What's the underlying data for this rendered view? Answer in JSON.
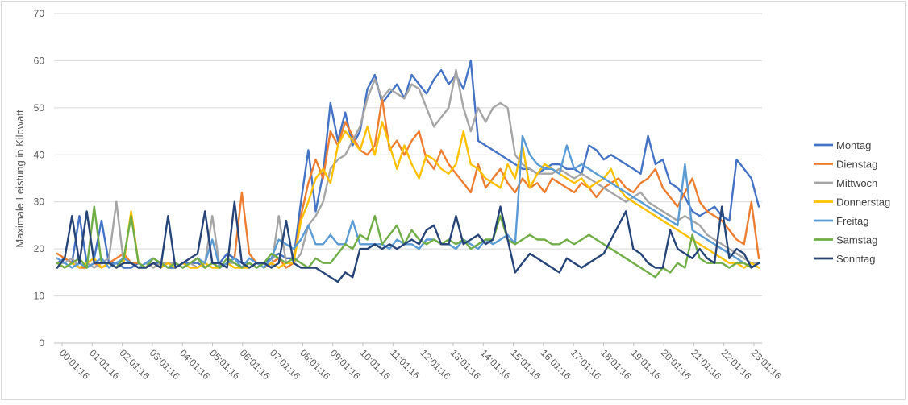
{
  "chart_data": {
    "type": "line",
    "title": "",
    "xlabel": "",
    "ylabel": "Maximale Leistung in Kilowatt",
    "ylim": [
      0,
      70
    ],
    "yticks": [
      0,
      10,
      20,
      30,
      40,
      50,
      60,
      70
    ],
    "grid": true,
    "legend_position": "right",
    "points_per_series": 96,
    "x_tick_labels": [
      "00:01:16",
      "01:01:16",
      "02:01:16",
      "03:01:16",
      "04:01:16",
      "05:01:16",
      "06:01:16",
      "07:01:16",
      "08:01:16",
      "09:01:16",
      "10:01:16",
      "11:01:16",
      "12:01:16",
      "13:01:16",
      "14:01:16",
      "15:01:16",
      "16:01:16",
      "17:01:16",
      "18:01:16",
      "19:01:16",
      "20:01:16",
      "21:01:16",
      "22:01:16",
      "23:01:16"
    ],
    "series": [
      {
        "name": "Montag",
        "color": "#4472c4",
        "values": [
          17,
          18,
          17,
          27,
          17,
          18,
          26,
          17,
          17,
          16,
          16,
          17,
          16,
          17,
          17,
          16,
          16,
          17,
          17,
          17,
          16,
          17,
          17,
          19,
          18,
          17,
          17,
          16,
          17,
          18,
          19,
          18,
          18,
          30,
          41,
          28,
          36,
          51,
          43,
          49,
          42,
          45,
          54,
          57,
          51,
          53,
          55,
          52,
          57,
          55,
          53,
          56,
          58,
          55,
          57,
          54,
          60,
          43,
          42,
          41,
          40,
          39,
          38,
          37,
          37,
          36,
          37,
          38,
          38,
          37,
          37,
          36,
          42,
          41,
          39,
          40,
          39,
          38,
          37,
          36,
          44,
          38,
          39,
          34,
          33,
          31,
          28,
          27,
          28,
          29,
          27,
          26,
          39,
          37,
          35,
          29
        ]
      },
      {
        "name": "Dienstag",
        "color": "#ed7d31",
        "values": [
          19,
          18,
          17,
          16,
          16,
          17,
          16,
          17,
          18,
          19,
          17,
          17,
          16,
          17,
          16,
          17,
          17,
          16,
          17,
          18,
          16,
          17,
          16,
          17,
          18,
          32,
          19,
          17,
          16,
          17,
          18,
          16,
          17,
          27,
          34,
          39,
          35,
          45,
          42,
          47,
          44,
          41,
          40,
          42,
          52,
          41,
          43,
          40,
          43,
          45,
          39,
          37,
          41,
          38,
          36,
          34,
          32,
          38,
          33,
          35,
          37,
          34,
          32,
          35,
          33,
          34,
          32,
          35,
          34,
          33,
          32,
          34,
          33,
          31,
          33,
          34,
          35,
          33,
          32,
          34,
          35,
          37,
          33,
          31,
          29,
          32,
          35,
          30,
          28,
          27,
          26,
          24,
          22,
          21,
          30,
          18
        ]
      },
      {
        "name": "Mittwoch",
        "color": "#a5a5a5",
        "values": [
          17,
          17,
          18,
          16,
          17,
          16,
          17,
          18,
          30,
          17,
          17,
          16,
          17,
          16,
          17,
          17,
          17,
          16,
          17,
          16,
          17,
          27,
          16,
          17,
          17,
          16,
          17,
          16,
          17,
          16,
          27,
          17,
          17,
          19,
          25,
          27,
          30,
          37,
          39,
          40,
          43,
          46,
          52,
          56,
          52,
          54,
          53,
          52,
          55,
          54,
          50,
          46,
          48,
          50,
          58,
          50,
          45,
          50,
          47,
          50,
          51,
          50,
          40,
          38,
          37,
          36,
          36,
          36,
          37,
          36,
          35,
          36,
          35,
          34,
          33,
          32,
          31,
          30,
          31,
          32,
          30,
          29,
          28,
          27,
          26,
          27,
          26,
          25,
          23,
          22,
          21,
          20,
          19,
          18,
          17,
          17
        ]
      },
      {
        "name": "Donnerstag",
        "color": "#ffc000",
        "values": [
          17,
          16,
          17,
          16,
          17,
          18,
          16,
          17,
          16,
          17,
          28,
          17,
          16,
          17,
          16,
          17,
          16,
          17,
          16,
          16,
          17,
          16,
          16,
          17,
          16,
          16,
          16,
          17,
          16,
          17,
          16,
          17,
          17,
          26,
          30,
          35,
          37,
          34,
          42,
          45,
          43,
          41,
          46,
          40,
          47,
          42,
          37,
          42,
          38,
          35,
          40,
          39,
          37,
          36,
          38,
          45,
          38,
          37,
          35,
          34,
          33,
          38,
          35,
          42,
          33,
          36,
          38,
          37,
          36,
          35,
          34,
          35,
          33,
          34,
          35,
          37,
          33,
          31,
          30,
          29,
          28,
          27,
          26,
          25,
          24,
          23,
          22,
          21,
          20,
          19,
          18,
          17,
          17,
          16,
          17,
          16
        ]
      },
      {
        "name": "Freitag",
        "color": "#5b9bd5",
        "values": [
          18,
          17,
          16,
          17,
          16,
          17,
          18,
          16,
          17,
          18,
          17,
          16,
          17,
          18,
          17,
          16,
          17,
          16,
          17,
          18,
          17,
          22,
          16,
          17,
          18,
          16,
          18,
          17,
          16,
          18,
          22,
          21,
          20,
          22,
          25,
          21,
          21,
          23,
          21,
          21,
          26,
          21,
          21,
          21,
          21,
          20,
          22,
          21,
          21,
          20,
          22,
          22,
          21,
          21,
          20,
          22,
          21,
          20,
          22,
          21,
          22,
          23,
          21,
          44,
          40,
          38,
          37,
          37,
          36,
          42,
          37,
          38,
          37,
          36,
          35,
          34,
          33,
          32,
          31,
          30,
          29,
          28,
          27,
          26,
          25,
          38,
          24,
          23,
          22,
          21,
          20,
          19,
          18,
          17,
          16,
          17
        ]
      },
      {
        "name": "Samstag",
        "color": "#70ad47",
        "values": [
          17,
          16,
          17,
          18,
          16,
          29,
          17,
          17,
          16,
          18,
          27,
          17,
          16,
          18,
          17,
          16,
          17,
          16,
          17,
          18,
          16,
          17,
          16,
          18,
          17,
          16,
          17,
          16,
          17,
          19,
          18,
          17,
          18,
          17,
          16,
          18,
          17,
          17,
          19,
          21,
          20,
          23,
          22,
          27,
          21,
          23,
          25,
          21,
          24,
          22,
          21,
          22,
          21,
          22,
          21,
          22,
          20,
          21,
          22,
          22,
          27,
          22,
          21,
          22,
          23,
          22,
          22,
          21,
          21,
          22,
          21,
          22,
          23,
          22,
          21,
          20,
          19,
          18,
          17,
          16,
          15,
          14,
          16,
          15,
          17,
          16,
          23,
          18,
          17,
          17,
          17,
          16,
          17,
          17,
          16,
          17
        ]
      },
      {
        "name": "Sonntag",
        "color": "#264478",
        "values": [
          16,
          18,
          27,
          17,
          28,
          17,
          17,
          17,
          16,
          17,
          17,
          16,
          16,
          17,
          16,
          27,
          16,
          17,
          18,
          19,
          28,
          17,
          17,
          16,
          30,
          17,
          16,
          17,
          17,
          16,
          17,
          26,
          17,
          16,
          16,
          16,
          15,
          14,
          13,
          15,
          14,
          20,
          20,
          21,
          20,
          21,
          20,
          21,
          22,
          21,
          24,
          25,
          21,
          21,
          27,
          21,
          22,
          23,
          21,
          22,
          29,
          22,
          15,
          17,
          19,
          18,
          17,
          16,
          15,
          18,
          17,
          16,
          17,
          18,
          19,
          22,
          25,
          28,
          20,
          19,
          17,
          16,
          16,
          24,
          20,
          19,
          18,
          20,
          18,
          17,
          29,
          18,
          20,
          19,
          16,
          17
        ]
      }
    ]
  }
}
